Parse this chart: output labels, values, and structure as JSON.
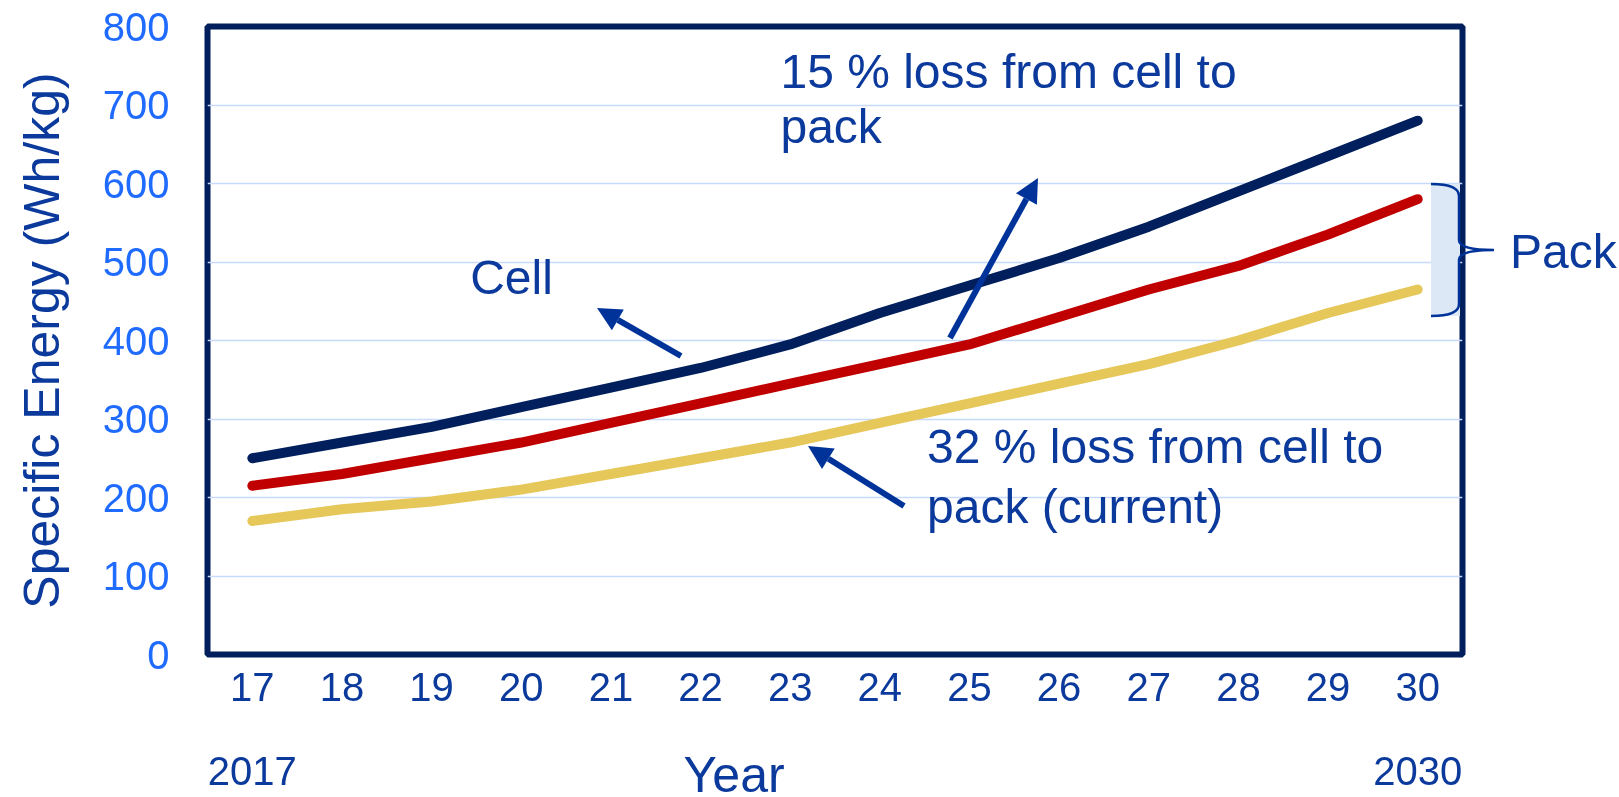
{
  "chart_data": {
    "type": "line",
    "xlabel": "Year",
    "ylabel": "Specific Energy (Wh/kg)",
    "x": [
      2017,
      2018,
      2019,
      2020,
      2021,
      2022,
      2023,
      2024,
      2025,
      2026,
      2027,
      2028,
      2029,
      2030
    ],
    "series": [
      {
        "color": "#001f5c",
        "values": [
          250,
          270,
          290,
          315,
          340,
          365,
          395,
          435,
          470,
          505,
          545,
          590,
          635,
          680
        ]
      },
      {
        "color": "#c00000",
        "values": [
          215,
          230,
          250,
          270,
          295,
          320,
          345,
          370,
          395,
          430,
          465,
          495,
          535,
          580
        ]
      },
      {
        "color": "#e6c75a",
        "values": [
          170,
          185,
          195,
          210,
          230,
          250,
          270,
          295,
          320,
          345,
          370,
          400,
          435,
          465
        ]
      }
    ],
    "xlim": [
      2016.5,
      2030.5
    ],
    "xticks": [
      {
        "value": 2017,
        "label": "17"
      },
      {
        "value": 2018,
        "label": "18"
      },
      {
        "value": 2019,
        "label": "19"
      },
      {
        "value": 2020,
        "label": "20"
      },
      {
        "value": 2021,
        "label": "21"
      },
      {
        "value": 2022,
        "label": "22"
      },
      {
        "value": 2023,
        "label": "23"
      },
      {
        "value": 2024,
        "label": "24"
      },
      {
        "value": 2025,
        "label": "25"
      },
      {
        "value": 2026,
        "label": "26"
      },
      {
        "value": 2027,
        "label": "27"
      },
      {
        "value": 2028,
        "label": "28"
      },
      {
        "value": 2029,
        "label": "29"
      },
      {
        "value": 2030,
        "label": "30"
      }
    ],
    "x2lim": [
      2016.5,
      2030.5
    ],
    "x2ticks": [
      2017,
      2030
    ],
    "ylim": [
      0,
      800
    ],
    "yticks": [
      0,
      100,
      200,
      300,
      400,
      500,
      600,
      700,
      800
    ],
    "grid": "y",
    "line_style": "solid",
    "annotations": [
      "Cell",
      "15 % loss from cell to pack",
      {
        "text": "32 % loss from cell to pack (current)",
        "x": 2023.2,
        "y": 270
      },
      "Pack"
    ]
  }
}
